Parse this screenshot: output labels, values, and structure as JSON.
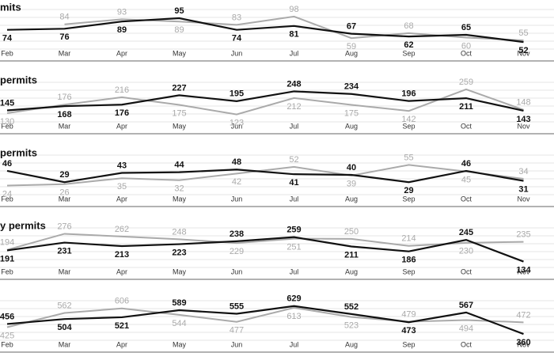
{
  "chart_data": [
    {
      "type": "line",
      "title": "mits",
      "categories": [
        "Feb",
        "Mar",
        "Apr",
        "May",
        "Jun",
        "Jul",
        "Aug",
        "Sep",
        "Oct",
        "Nov"
      ],
      "ylim": [
        45,
        105
      ],
      "grid": true,
      "series": [
        {
          "color": "#aaaaaa",
          "values": [
            null,
            84,
            93,
            89,
            83,
            98,
            59,
            68,
            60,
            55
          ]
        },
        {
          "color": "#111111",
          "values": [
            74,
            76,
            89,
            95,
            74,
            81,
            67,
            62,
            65,
            52
          ]
        }
      ]
    },
    {
      "type": "line",
      "title": "permits",
      "categories": [
        "Feb",
        "Mar",
        "Apr",
        "May",
        "Jun",
        "Jul",
        "Aug",
        "Sep",
        "Oct",
        "Nov"
      ],
      "ylim": [
        100,
        280
      ],
      "grid": true,
      "series": [
        {
          "color": "#aaaaaa",
          "values": [
            130,
            176,
            216,
            175,
            123,
            212,
            175,
            142,
            259,
            148
          ]
        },
        {
          "color": "#111111",
          "values": [
            145,
            168,
            176,
            227,
            195,
            248,
            234,
            196,
            211,
            143
          ]
        }
      ]
    },
    {
      "type": "line",
      "title": "permits",
      "categories": [
        "Feb",
        "Mar",
        "Apr",
        "May",
        "Jun",
        "Jul",
        "Aug",
        "Sep",
        "Oct",
        "Nov"
      ],
      "ylim": [
        15,
        65
      ],
      "grid": true,
      "series": [
        {
          "color": "#aaaaaa",
          "values": [
            24,
            26,
            35,
            32,
            42,
            52,
            39,
            55,
            45,
            34
          ]
        },
        {
          "color": "#111111",
          "values": [
            46,
            29,
            43,
            44,
            48,
            41,
            40,
            29,
            46,
            31
          ]
        }
      ]
    },
    {
      "type": "line",
      "title": "y permits",
      "categories": [
        "Feb",
        "Mar",
        "Apr",
        "May",
        "Jun",
        "Jul",
        "Aug",
        "Sep",
        "Oct",
        "Nov"
      ],
      "ylim": [
        120,
        290
      ],
      "grid": true,
      "series": [
        {
          "color": "#aaaaaa",
          "values": [
            194,
            276,
            262,
            248,
            229,
            251,
            250,
            214,
            230,
            235
          ]
        },
        {
          "color": "#111111",
          "values": [
            191,
            231,
            213,
            223,
            238,
            259,
            211,
            186,
            245,
            134
          ]
        }
      ]
    },
    {
      "type": "line",
      "categories": [
        "Feb",
        "Mar",
        "Apr",
        "May",
        "Jun",
        "Jul",
        "Aug",
        "Sep",
        "Oct",
        "Nov"
      ],
      "ylim": [
        330,
        650
      ],
      "grid": true,
      "series": [
        {
          "color": "#aaaaaa",
          "values": [
            425,
            562,
            606,
            544,
            477,
            613,
            523,
            479,
            494,
            472
          ]
        },
        {
          "color": "#111111",
          "values": [
            456,
            504,
            521,
            589,
            555,
            629,
            552,
            473,
            567,
            360
          ]
        }
      ]
    }
  ]
}
